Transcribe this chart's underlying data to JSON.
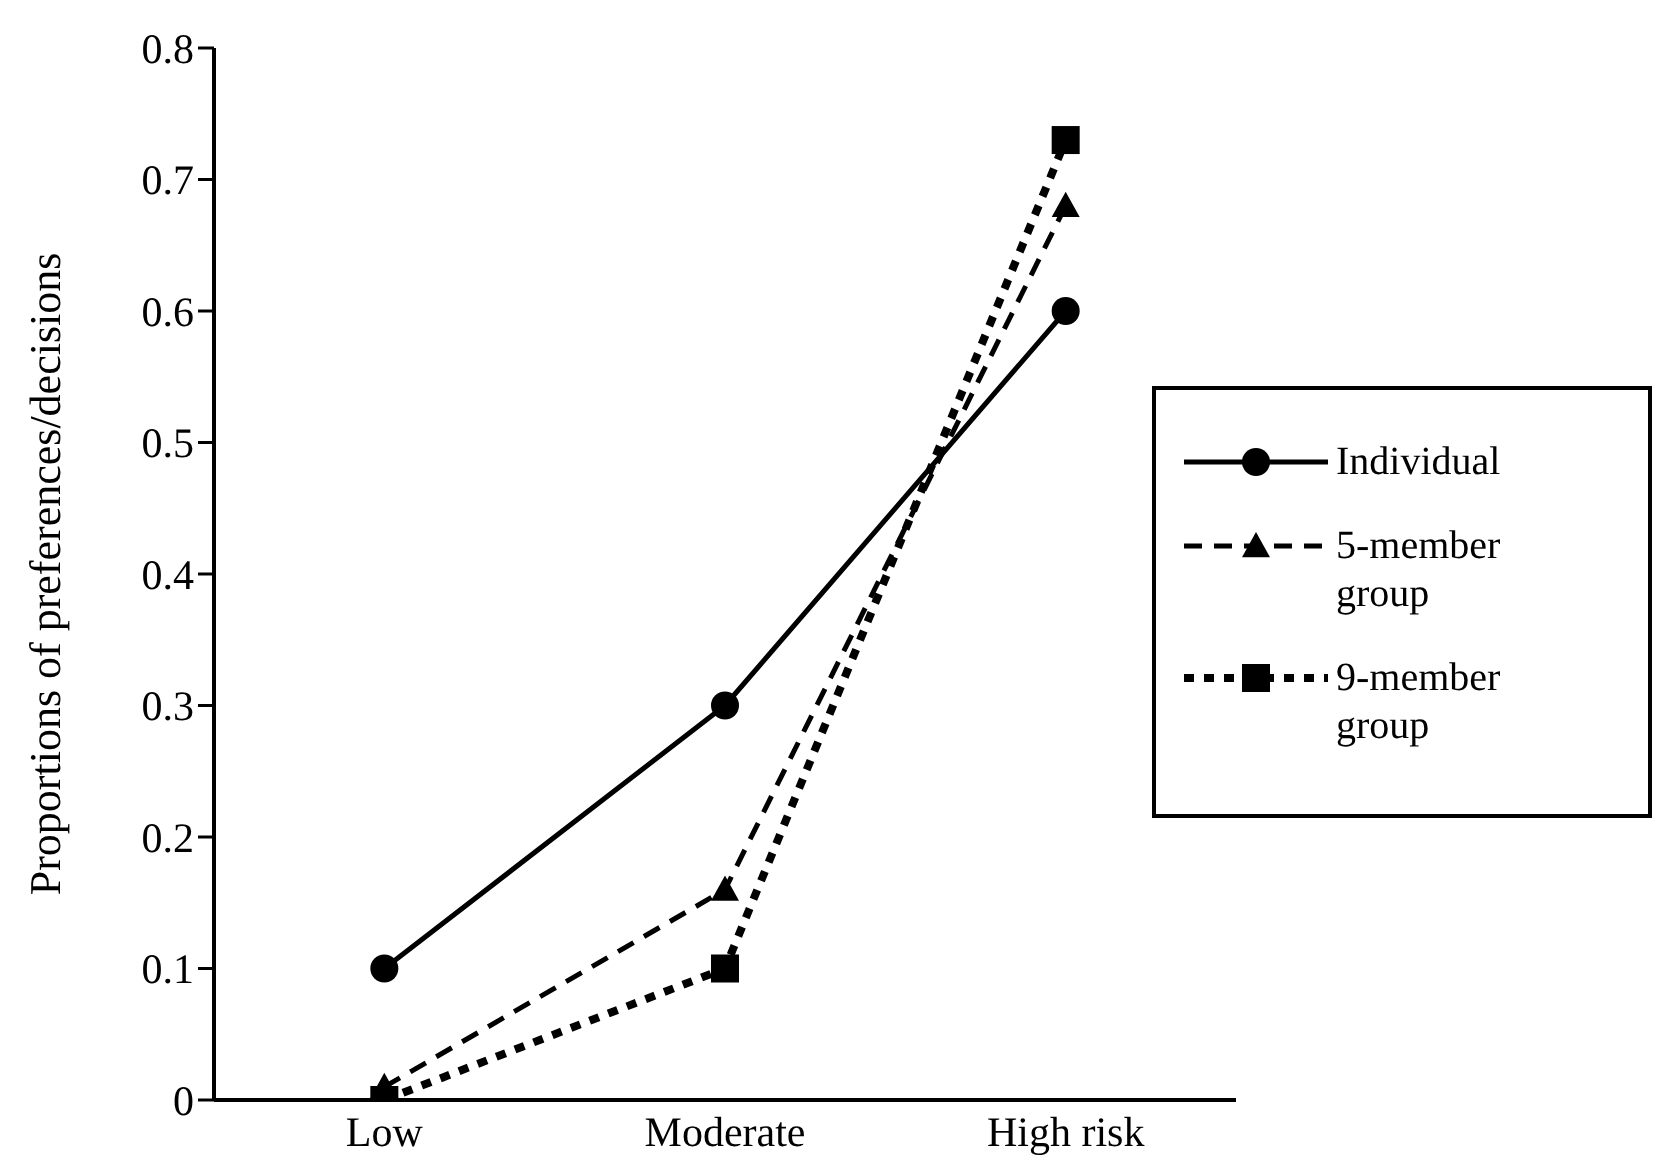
{
  "chart_data": {
    "type": "line",
    "ylabel": "Proportions of preferences/decisions",
    "categories": [
      "Low",
      "Moderate",
      "High risk"
    ],
    "series": [
      {
        "name": "Individual",
        "color": "#000000",
        "values": [
          0.1,
          0.3,
          0.6
        ],
        "marker": "circle",
        "line_style": "solid"
      },
      {
        "name": "5-member group",
        "color": "#000000",
        "values": [
          0.01,
          0.16,
          0.68
        ],
        "marker": "triangle",
        "line_style": "dashed"
      },
      {
        "name": "9-member group",
        "color": "#000000",
        "values": [
          0,
          0.1,
          0.73
        ],
        "marker": "square",
        "line_style": "dotted"
      }
    ],
    "ylim": [
      0,
      0.8
    ],
    "yticks": [
      0,
      0.1,
      0.2,
      0.3,
      0.4,
      0.5,
      0.6,
      0.7,
      0.8
    ],
    "grid": false,
    "legend": "right"
  }
}
